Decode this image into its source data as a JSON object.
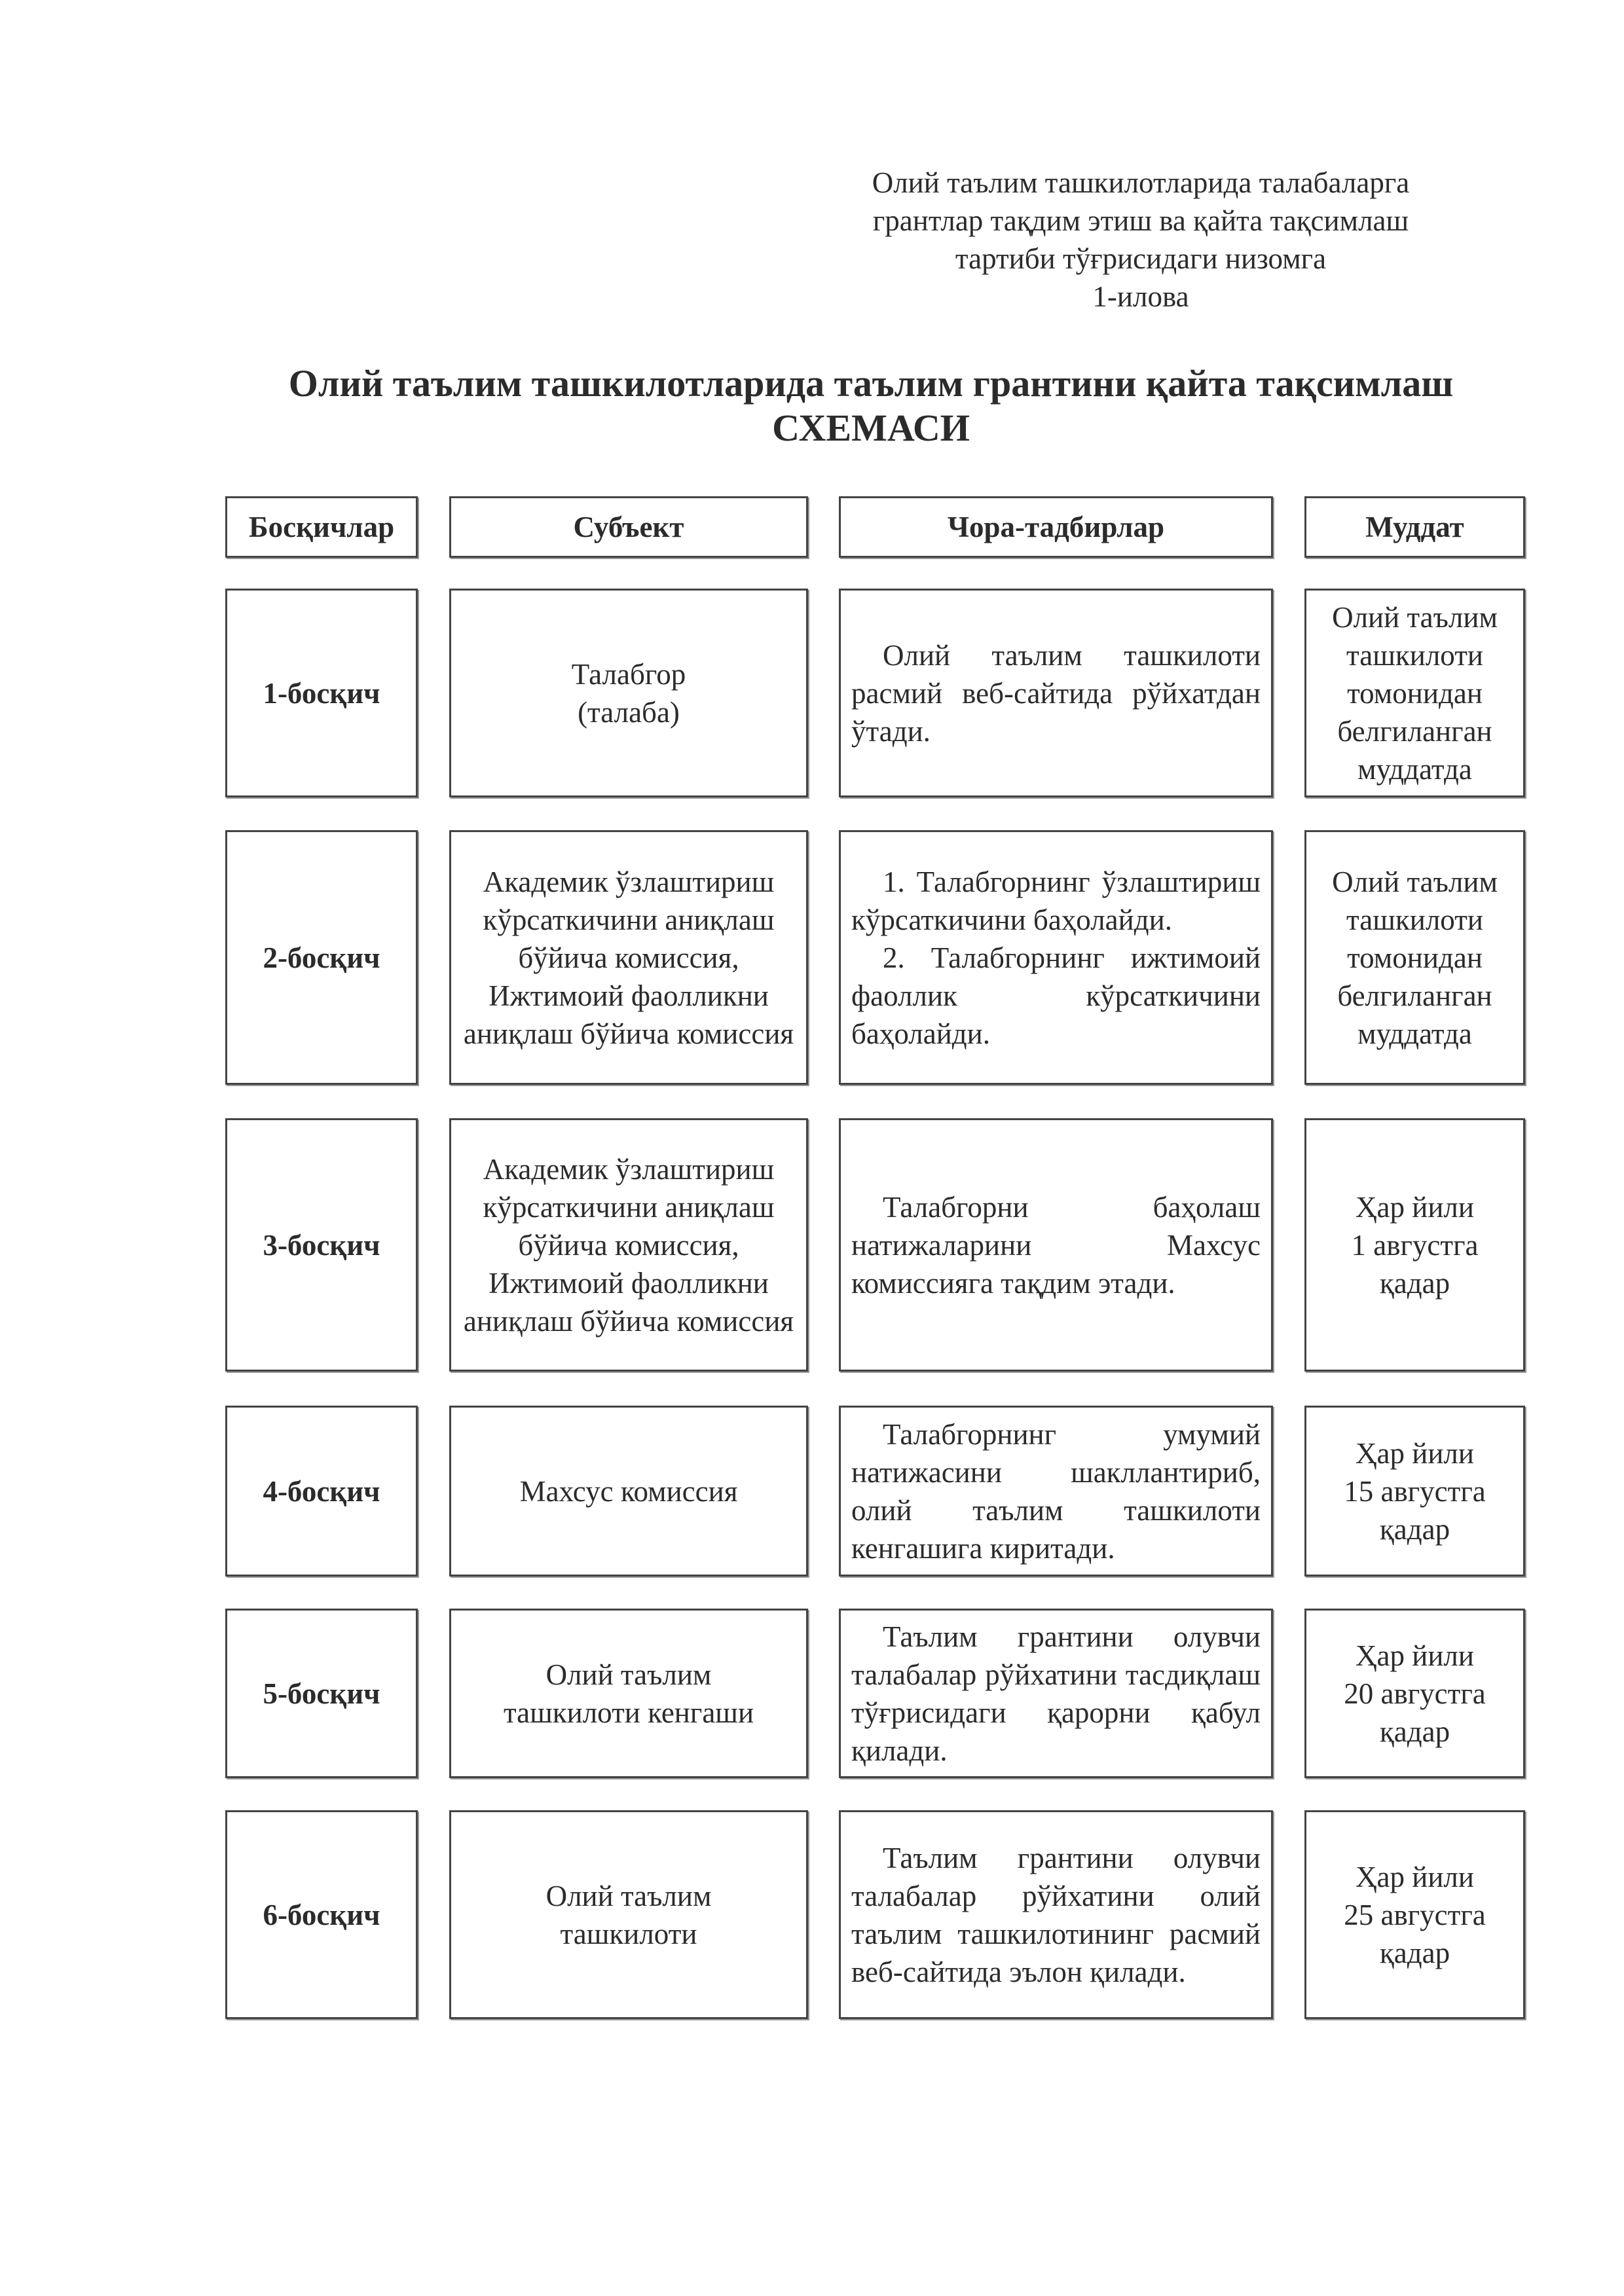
{
  "annex": {
    "lines": [
      "Олий таълим ташкилотларида талабаларга",
      "грантлар тақдим этиш ва қайта тақсимлаш",
      "тартиби тўғрисидаги низомга",
      "1-илова"
    ]
  },
  "title": {
    "line1": "Олий таълим ташкилотларида таълим грантини қайта тақсимлаш",
    "line2": "СХЕМАСИ"
  },
  "headers": [
    "Босқичлар",
    "Субъект",
    "Чора-тадбирлар",
    "Муддат"
  ],
  "rows": [
    {
      "stage": "1-босқич",
      "subject": [
        "Талабгор",
        "(талаба)"
      ],
      "actions": [
        "Олий таълим ташкилоти расмий веб-сайтида рўйхатдан ўтади."
      ],
      "deadline": [
        "Олий таълим",
        "ташкилоти",
        "томонидан",
        "белгиланган",
        "муддатда"
      ]
    },
    {
      "stage": "2-босқич",
      "subject": [
        "Академик ўзлаштириш кўрсаткичини аниқлаш бўйича комиссия,",
        "Ижтимоий фаолликни аниқлаш бўйича комиссия"
      ],
      "actions": [
        "1. Талабгорнинг ўзлаштириш кўрсаткичини баҳолайди.",
        "2. Талабгорнинг ижтимоий фаоллик кўрсаткичини баҳолайди."
      ],
      "deadline": [
        "Олий таълим",
        "ташкилоти",
        "томонидан",
        "белгиланган",
        "муддатда"
      ]
    },
    {
      "stage": "3-босқич",
      "subject": [
        "Академик ўзлаштириш кўрсаткичини аниқлаш бўйича комиссия,",
        "Ижтимоий фаолликни аниқлаш бўйича комиссия"
      ],
      "actions": [
        "Талабгорни баҳолаш натижаларини Махсус комиссияга тақдим этади."
      ],
      "deadline": [
        "Ҳар йили",
        "1 августга",
        "қадар"
      ]
    },
    {
      "stage": "4-босқич",
      "subject": [
        "Махсус комиссия"
      ],
      "actions": [
        "Талабгорнинг умумий натижасини шакллантириб, олий таълим ташкилоти кенгашига киритади."
      ],
      "deadline": [
        "Ҳар йили",
        "15 августга",
        "қадар"
      ]
    },
    {
      "stage": "5-босқич",
      "subject": [
        "Олий таълим",
        "ташкилоти кенгаши"
      ],
      "actions": [
        "Таълим грантини олувчи талабалар рўйхатини тасдиқлаш тўғрисидаги қарорни қабул қилади."
      ],
      "deadline": [
        "Ҳар йили",
        "20 августга",
        "қадар"
      ]
    },
    {
      "stage": "6-босқич",
      "subject": [
        "Олий таълим",
        "ташкилоти"
      ],
      "actions": [
        "Таълим грантини олувчи талабалар рўйхатини олий таълим ташкилотининг расмий веб-сайтида эълон қилади."
      ],
      "deadline": [
        "Ҳар йили",
        "25 августга",
        "қадар"
      ]
    }
  ]
}
